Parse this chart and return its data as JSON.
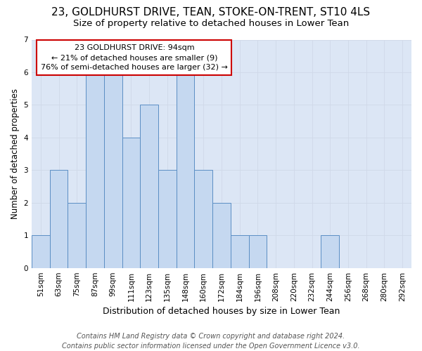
{
  "title": "23, GOLDHURST DRIVE, TEAN, STOKE-ON-TRENT, ST10 4LS",
  "subtitle": "Size of property relative to detached houses in Lower Tean",
  "xlabel": "Distribution of detached houses by size in Lower Tean",
  "ylabel": "Number of detached properties",
  "bin_labels": [
    "51sqm",
    "63sqm",
    "75sqm",
    "87sqm",
    "99sqm",
    "111sqm",
    "123sqm",
    "135sqm",
    "148sqm",
    "160sqm",
    "172sqm",
    "184sqm",
    "196sqm",
    "208sqm",
    "220sqm",
    "232sqm",
    "244sqm",
    "256sqm",
    "268sqm",
    "280sqm",
    "292sqm"
  ],
  "values": [
    1,
    3,
    2,
    6,
    6,
    4,
    5,
    3,
    6,
    3,
    2,
    1,
    1,
    0,
    0,
    0,
    1,
    0,
    0,
    0,
    0
  ],
  "bar_color": "#c5d8f0",
  "bar_edge_color": "#5b8ec4",
  "annotation_box_text": "23 GOLDHURST DRIVE: 94sqm\n← 21% of detached houses are smaller (9)\n76% of semi-detached houses are larger (32) →",
  "annotation_box_color": "#ffffff",
  "annotation_box_edge_color": "#cc0000",
  "grid_color": "#d0d8e8",
  "plot_bg_color": "#dce6f5",
  "fig_bg_color": "#ffffff",
  "footer_text": "Contains HM Land Registry data © Crown copyright and database right 2024.\nContains public sector information licensed under the Open Government Licence v3.0.",
  "ylim": [
    0,
    7
  ],
  "yticks": [
    0,
    1,
    2,
    3,
    4,
    5,
    6,
    7
  ],
  "title_fontsize": 11,
  "subtitle_fontsize": 9.5,
  "xlabel_fontsize": 9,
  "ylabel_fontsize": 8.5,
  "tick_fontsize": 7.5,
  "footer_fontsize": 7,
  "annotation_fontsize": 8
}
